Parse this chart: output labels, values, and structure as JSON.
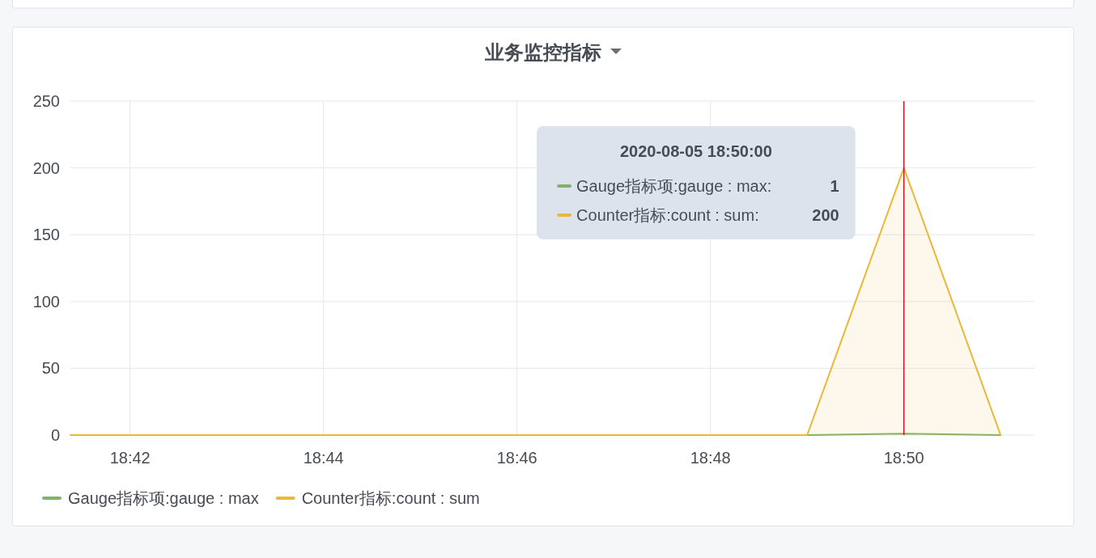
{
  "chart_data": {
    "type": "line",
    "title": "业务监控指标",
    "x": [
      "2020-08-05T18:41:23",
      "2020-08-05T18:42",
      "2020-08-05T18:43",
      "2020-08-05T18:44",
      "2020-08-05T18:45",
      "2020-08-05T18:46",
      "2020-08-05T18:47",
      "2020-08-05T18:48",
      "2020-08-05T18:49",
      "2020-08-05T18:50",
      "2020-08-05T18:51"
    ],
    "series": [
      {
        "name": "Gauge指标项:gauge : max",
        "color": "#7eb26d",
        "values": [
          null,
          null,
          null,
          null,
          null,
          null,
          null,
          null,
          0,
          1,
          0
        ]
      },
      {
        "name": "Counter指标:count : sum",
        "type": "area",
        "color": "#eab839",
        "values": [
          0,
          0,
          0,
          0,
          0,
          0,
          0,
          0,
          0,
          200,
          0
        ]
      }
    ],
    "xlim": [
      "2020-08-05T18:41:23",
      "2020-08-05T18:51:21"
    ],
    "xticks": [
      {
        "value": "2020-08-05T18:42",
        "label": "18:42"
      },
      {
        "value": "2020-08-05T18:44",
        "label": "18:44"
      },
      {
        "value": "2020-08-05T18:46",
        "label": "18:46"
      },
      {
        "value": "2020-08-05T18:48",
        "label": "18:48"
      },
      {
        "value": "2020-08-05T18:50",
        "label": "18:50"
      }
    ],
    "ylim": [
      0,
      250
    ],
    "yticks": [
      0,
      50,
      100,
      150,
      200,
      250
    ],
    "grid": true,
    "legend": "bottom",
    "ref_lines": [
      {
        "axis": "x",
        "value": "2020-08-05T18:50",
        "color": "#c4162a"
      }
    ],
    "annotations": [
      "2020-08-05 18:50:00",
      "Gauge指标项:gauge : max:",
      "1",
      "Counter指标:count : sum:",
      "200"
    ]
  }
}
